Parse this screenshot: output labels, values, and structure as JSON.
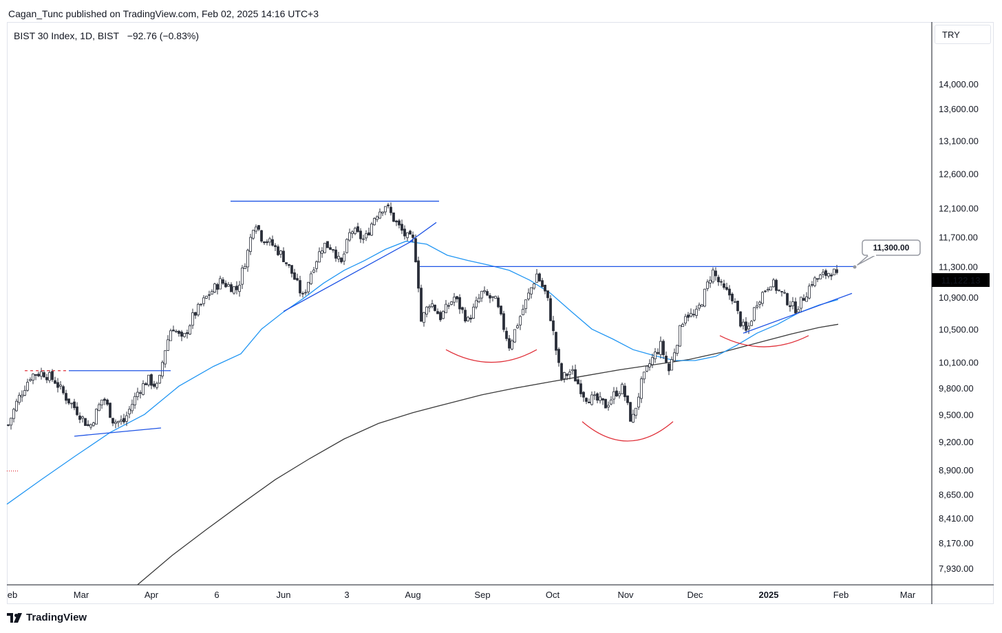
{
  "header": {
    "publisher_line": "Cagan_Tunc published on TradingView.com, Feb 02, 2025 14:16 UTC+3"
  },
  "legend": {
    "symbol": "BIST 30 Index, 1D, BIST",
    "change": "−92.76 (−0.83%)"
  },
  "currency_button": "TRY",
  "brand": "TradingView",
  "colors": {
    "up_candle": "#ffffff",
    "down_candle": "#2a2e39",
    "ma_fast": "#2196f3",
    "ma_slow": "#3a3a3a",
    "trendline": "#1e53e5",
    "arc": "#e0313a",
    "price_label_bg": "#000000"
  },
  "chart_data": {
    "type": "candlestick",
    "price_scale_labels": [
      "14,000.00",
      "13,600.00",
      "13,100.00",
      "12,600.00",
      "12,100.00",
      "11,700.00",
      "11,300.00",
      "10,900.00",
      "10,500.00",
      "10,100.00",
      "9,800.00",
      "9,500.00",
      "9,200.00",
      "8,900.00",
      "8,650.00",
      "8,410.00",
      "8,170.00",
      "7,930.00"
    ],
    "price_scale_values": [
      14000,
      13600,
      13100,
      12600,
      12100,
      11700,
      11300,
      10900,
      10500,
      10100,
      9800,
      9500,
      9200,
      8900,
      8650,
      8410,
      8170,
      7930
    ],
    "time_scale_labels": [
      "eb",
      "Mar",
      "Apr",
      "6",
      "Jun",
      "3",
      "Aug",
      "Sep",
      "Oct",
      "Nov",
      "Dec",
      "2025",
      "Feb",
      "Mar"
    ],
    "last_price_label": "11,122.13",
    "annotation_label": "11,300.00",
    "annotation_value": 11300,
    "last_price": 11122.13,
    "series": [
      {
        "name": "price",
        "keypoints": [
          [
            0,
            9050
          ],
          [
            8,
            9300
          ],
          [
            25,
            9650
          ],
          [
            45,
            9950
          ],
          [
            62,
            9980
          ],
          [
            80,
            9880
          ],
          [
            95,
            9700
          ],
          [
            110,
            9560
          ],
          [
            130,
            9350
          ],
          [
            150,
            9700
          ],
          [
            165,
            9420
          ],
          [
            180,
            9420
          ],
          [
            200,
            9750
          ],
          [
            215,
            9900
          ],
          [
            230,
            9800
          ],
          [
            238,
            10200
          ],
          [
            250,
            10550
          ],
          [
            265,
            10350
          ],
          [
            280,
            10650
          ],
          [
            300,
            10900
          ],
          [
            320,
            11100
          ],
          [
            345,
            11000
          ],
          [
            360,
            11500
          ],
          [
            370,
            11950
          ],
          [
            380,
            11700
          ],
          [
            395,
            11600
          ],
          [
            410,
            11450
          ],
          [
            425,
            11200
          ],
          [
            440,
            10900
          ],
          [
            455,
            11300
          ],
          [
            470,
            11600
          ],
          [
            485,
            11550
          ],
          [
            495,
            11300
          ],
          [
            510,
            11800
          ],
          [
            530,
            11650
          ],
          [
            545,
            12000
          ],
          [
            560,
            12150
          ],
          [
            575,
            11900
          ],
          [
            590,
            11700
          ],
          [
            600,
            11650
          ],
          [
            606,
            11300
          ],
          [
            612,
            10600
          ],
          [
            625,
            10850
          ],
          [
            640,
            10650
          ],
          [
            660,
            10900
          ],
          [
            680,
            10600
          ],
          [
            700,
            10950
          ],
          [
            720,
            10850
          ],
          [
            740,
            10300
          ],
          [
            760,
            10750
          ],
          [
            780,
            11200
          ],
          [
            795,
            10900
          ],
          [
            805,
            10400
          ],
          [
            815,
            9900
          ],
          [
            830,
            10000
          ],
          [
            850,
            9700
          ],
          [
            870,
            9650
          ],
          [
            880,
            9600
          ],
          [
            895,
            9750
          ],
          [
            905,
            9800
          ],
          [
            918,
            9400
          ],
          [
            932,
            9850
          ],
          [
            945,
            10100
          ],
          [
            960,
            10300
          ],
          [
            972,
            10000
          ],
          [
            982,
            10300
          ],
          [
            995,
            10700
          ],
          [
            1010,
            10650
          ],
          [
            1022,
            10900
          ],
          [
            1035,
            11250
          ],
          [
            1050,
            11000
          ],
          [
            1065,
            10900
          ],
          [
            1075,
            10600
          ],
          [
            1085,
            10450
          ],
          [
            1100,
            10850
          ],
          [
            1120,
            11100
          ],
          [
            1140,
            10900
          ],
          [
            1155,
            10750
          ],
          [
            1165,
            10850
          ],
          [
            1180,
            11100
          ],
          [
            1200,
            11200
          ],
          [
            1210,
            11250
          ],
          [
            1218,
            11122
          ]
        ]
      }
    ],
    "ma_fast": [
      [
        10,
        8550
      ],
      [
        60,
        8800
      ],
      [
        110,
        9050
      ],
      [
        160,
        9300
      ],
      [
        210,
        9500
      ],
      [
        260,
        9820
      ],
      [
        310,
        10050
      ],
      [
        350,
        10200
      ],
      [
        380,
        10500
      ],
      [
        410,
        10700
      ],
      [
        440,
        10880
      ],
      [
        470,
        11080
      ],
      [
        500,
        11250
      ],
      [
        530,
        11380
      ],
      [
        560,
        11530
      ],
      [
        590,
        11640
      ],
      [
        620,
        11600
      ],
      [
        650,
        11450
      ],
      [
        680,
        11380
      ],
      [
        710,
        11320
      ],
      [
        740,
        11250
      ],
      [
        770,
        11120
      ],
      [
        800,
        10950
      ],
      [
        830,
        10720
      ],
      [
        860,
        10500
      ],
      [
        890,
        10380
      ],
      [
        920,
        10250
      ],
      [
        950,
        10180
      ],
      [
        980,
        10120
      ],
      [
        1010,
        10120
      ],
      [
        1040,
        10170
      ],
      [
        1070,
        10300
      ],
      [
        1100,
        10450
      ],
      [
        1130,
        10560
      ],
      [
        1160,
        10700
      ],
      [
        1190,
        10800
      ],
      [
        1218,
        10870
      ]
    ],
    "ma_slow": [
      [
        200,
        7780
      ],
      [
        250,
        8050
      ],
      [
        300,
        8300
      ],
      [
        350,
        8550
      ],
      [
        400,
        8800
      ],
      [
        450,
        9020
      ],
      [
        500,
        9230
      ],
      [
        550,
        9400
      ],
      [
        600,
        9520
      ],
      [
        650,
        9620
      ],
      [
        700,
        9720
      ],
      [
        750,
        9800
      ],
      [
        800,
        9870
      ],
      [
        850,
        9940
      ],
      [
        900,
        10010
      ],
      [
        950,
        10070
      ],
      [
        1000,
        10130
      ],
      [
        1050,
        10220
      ],
      [
        1100,
        10330
      ],
      [
        1150,
        10440
      ],
      [
        1190,
        10520
      ],
      [
        1218,
        10560
      ]
    ]
  }
}
